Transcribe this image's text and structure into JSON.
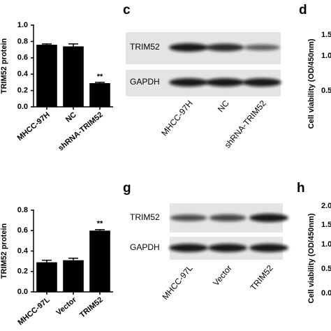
{
  "chart_data": [
    {
      "type": "bar",
      "ylabel": "TRIM52 protein",
      "categories": [
        "MHCC-97H",
        "NC",
        "shRNA-TRIM52"
      ],
      "values": [
        0.76,
        0.74,
        0.29
      ],
      "errors": [
        0.01,
        0.03,
        0.01
      ],
      "significance": [
        null,
        null,
        "**"
      ],
      "color": "#000000",
      "ylim": [
        0,
        1.0
      ],
      "yticks": [
        {
          "value": 0,
          "label": "0.0"
        },
        0.2,
        0.4,
        0.6,
        0.8,
        {
          "value": 1.0,
          "label": "1.0"
        }
      ]
    },
    {
      "type": "bar",
      "ylabel": "TRIM52 protein",
      "categories": [
        "MHCC-97L",
        "Vector",
        "TRIM52"
      ],
      "values": [
        0.29,
        0.31,
        0.6
      ],
      "errors": [
        0.02,
        0.02,
        0.01
      ],
      "significance": [
        null,
        null,
        "**"
      ],
      "color": "#000000",
      "ylim": [
        0,
        0.8
      ],
      "yticks": [
        {
          "value": 0,
          "label": "0.0"
        },
        0.2,
        0.4,
        0.6,
        0.8
      ]
    }
  ],
  "blots": [
    {
      "letter": "c",
      "rows": [
        "TRIM52",
        "GAPDH"
      ],
      "lanes": [
        "MHCC-97H",
        "NC",
        "shRNA-TRIM52"
      ]
    },
    {
      "letter": "g",
      "rows": [
        "TRIM52",
        "GAPDH"
      ],
      "lanes": [
        "MHCC-97L",
        "Vector",
        "TRIM52"
      ]
    }
  ],
  "partial_panels": [
    {
      "letter": "d",
      "ylabel": "Cell viability (OD/450nm)",
      "tick_labels": [
        "1.5",
        "1.0",
        "0.5"
      ]
    },
    {
      "letter": "h",
      "ylabel": "Cell viability (OD/450nm)",
      "tick_labels": [
        "2.0",
        "1.5",
        "1.0",
        "0.5",
        "0.0"
      ]
    }
  ]
}
